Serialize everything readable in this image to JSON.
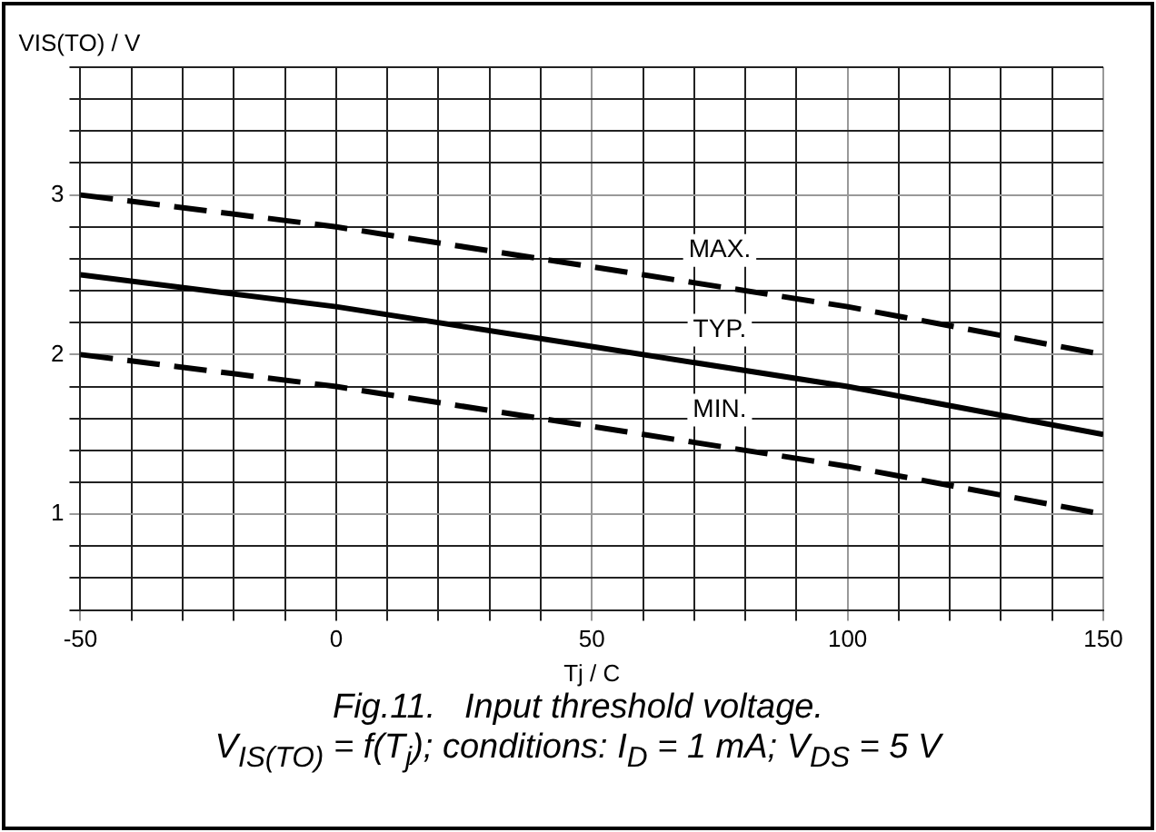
{
  "chart_data": {
    "type": "line",
    "ylabel": "VIS(TO) / V",
    "xlabel": "Tj / C",
    "x": [
      -50,
      0,
      50,
      100,
      150
    ],
    "series": [
      {
        "name": "MAX.",
        "color": "#000000",
        "values": [
          3.0,
          2.8,
          2.55,
          2.3,
          2.0
        ],
        "line_style": "dashed"
      },
      {
        "name": "TYP.",
        "color": "#000000",
        "values": [
          2.5,
          2.3,
          2.05,
          1.8,
          1.5
        ],
        "line_style": "solid"
      },
      {
        "name": "MIN.",
        "color": "#000000",
        "values": [
          2.0,
          1.8,
          1.55,
          1.3,
          1.0
        ],
        "line_style": "dashed"
      }
    ],
    "xlim": [
      -50,
      150
    ],
    "xticks": [
      -50,
      {
        "value": -40,
        "label": null
      },
      {
        "value": -30,
        "label": null
      },
      {
        "value": -20,
        "label": null
      },
      {
        "value": -10,
        "label": null
      },
      0,
      {
        "value": 10,
        "label": null
      },
      {
        "value": 20,
        "label": null
      },
      {
        "value": 30,
        "label": null
      },
      {
        "value": 40,
        "label": null
      },
      50,
      {
        "value": 60,
        "label": null
      },
      {
        "value": 70,
        "label": null
      },
      {
        "value": 80,
        "label": null
      },
      {
        "value": 90,
        "label": null
      },
      100,
      {
        "value": 110,
        "label": null
      },
      {
        "value": 120,
        "label": null
      },
      {
        "value": 130,
        "label": null
      },
      {
        "value": 140,
        "label": null
      },
      150
    ],
    "ylim": [
      0.4,
      3.8
    ],
    "yticks": [
      {
        "value": 0.4,
        "label": null
      },
      {
        "value": 0.6,
        "label": null
      },
      {
        "value": 0.8,
        "label": null
      },
      1,
      {
        "value": 1.2,
        "label": null
      },
      {
        "value": 1.4,
        "label": null
      },
      {
        "value": 1.6,
        "label": null
      },
      {
        "value": 1.8,
        "label": null
      },
      2,
      {
        "value": 2.2,
        "label": null
      },
      {
        "value": 2.4,
        "label": null
      },
      {
        "value": 2.6,
        "label": null
      },
      {
        "value": 2.8,
        "label": null
      },
      3,
      {
        "value": 3.2,
        "label": null
      },
      {
        "value": 3.4,
        "label": null
      },
      {
        "value": 3.6,
        "label": null
      },
      {
        "value": 3.8,
        "label": null
      }
    ],
    "grid": true,
    "legend": false,
    "marker": "none",
    "annotations": [
      "Fig.11.   Input threshold voltage.",
      "V$_{IS(TO)}$ = f(T$_{j}$); conditions: I$_{D}$ = 1 mA; V$_{DS}$ = 5 V"
    ]
  }
}
